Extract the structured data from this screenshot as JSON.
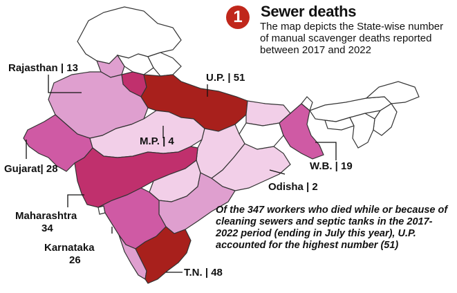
{
  "header": {
    "badge_number": "1",
    "title": "Sewer deaths",
    "description": "The map depicts the State-wise number of manual scavenger deaths reported between 2017 and 2022"
  },
  "note": "Of the 347 workers who died while or because of cleaning sewers and septic tanks in the 2017-2022 period (ending in July this year), U.P. accounted for the highest number (51)",
  "labels": {
    "rajasthan": "Rajasthan | 13",
    "up": "U.P. | 51",
    "mp": "M.P. | 4",
    "gujarat": "Gujarat| 28",
    "wb": "W.B. | 19",
    "odisha": "Odisha | 2",
    "maharashtra_name": "Maharashtra",
    "maharashtra_value": "34",
    "karnataka_name": "Karnataka",
    "karnataka_value": "26",
    "tn": "T.N. | 48"
  },
  "colors": {
    "darkest": "#a8201c",
    "dark": "#c0306d",
    "medium": "#cf5aa4",
    "light": "#df9fcf",
    "lightest": "#f2cfe8",
    "none": "#ffffff",
    "border": "#333333",
    "badge": "#c0271b"
  }
}
